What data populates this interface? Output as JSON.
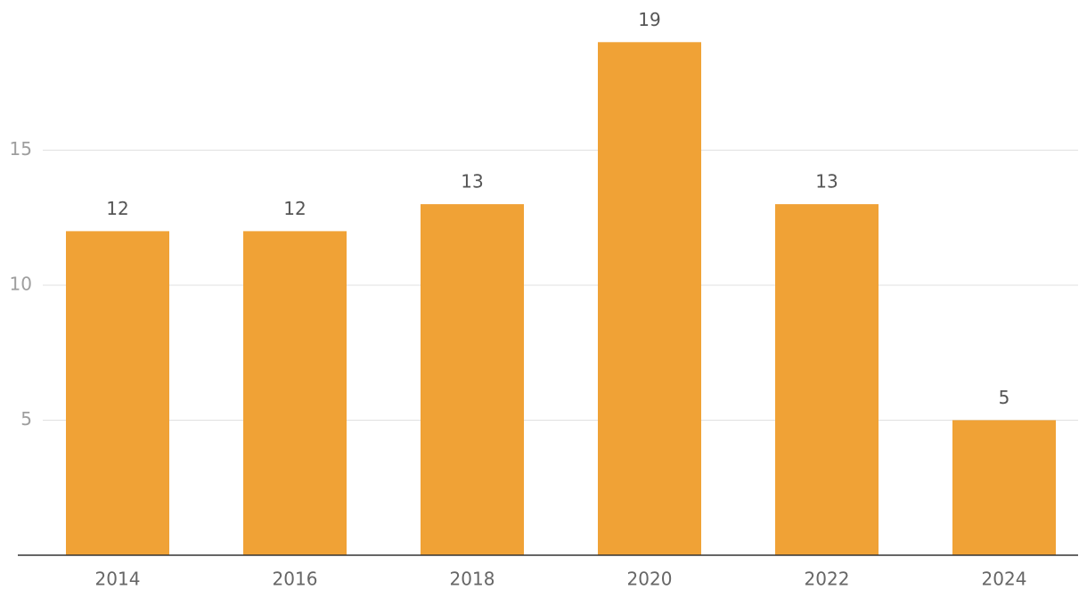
{
  "chart_data": {
    "type": "bar",
    "categories": [
      "2014",
      "2016",
      "2018",
      "2020",
      "2022",
      "2024"
    ],
    "values": [
      12,
      12,
      13,
      19,
      13,
      5
    ],
    "color": "#f0a236",
    "ylim": [
      0,
      20
    ],
    "yticks": [
      5,
      10,
      15
    ],
    "grid": true
  }
}
